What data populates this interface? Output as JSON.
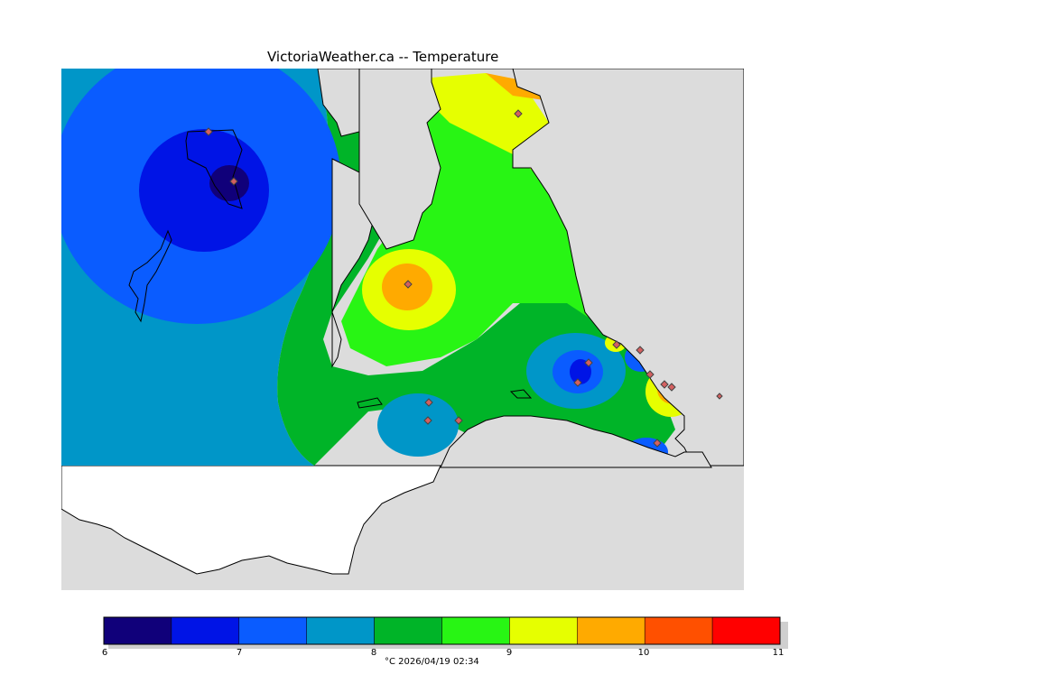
{
  "title": "VictoriaWeather.ca -- Temperature",
  "caption": "°C  2026/04/19 02:34",
  "legend": {
    "ticks": [
      "6",
      "7",
      "8",
      "9",
      "10",
      "11"
    ],
    "colors": [
      "#10007a",
      "#0014e6",
      "#0a5cff",
      "#0096c8",
      "#00b428",
      "#28f514",
      "#e6ff00",
      "#ffaa00",
      "#ff5000",
      "#ff0000"
    ]
  },
  "map": {
    "land_color": "#dcdcdc",
    "water_outside_color": "#ffffff",
    "station_marker": "diamond-icon"
  }
}
